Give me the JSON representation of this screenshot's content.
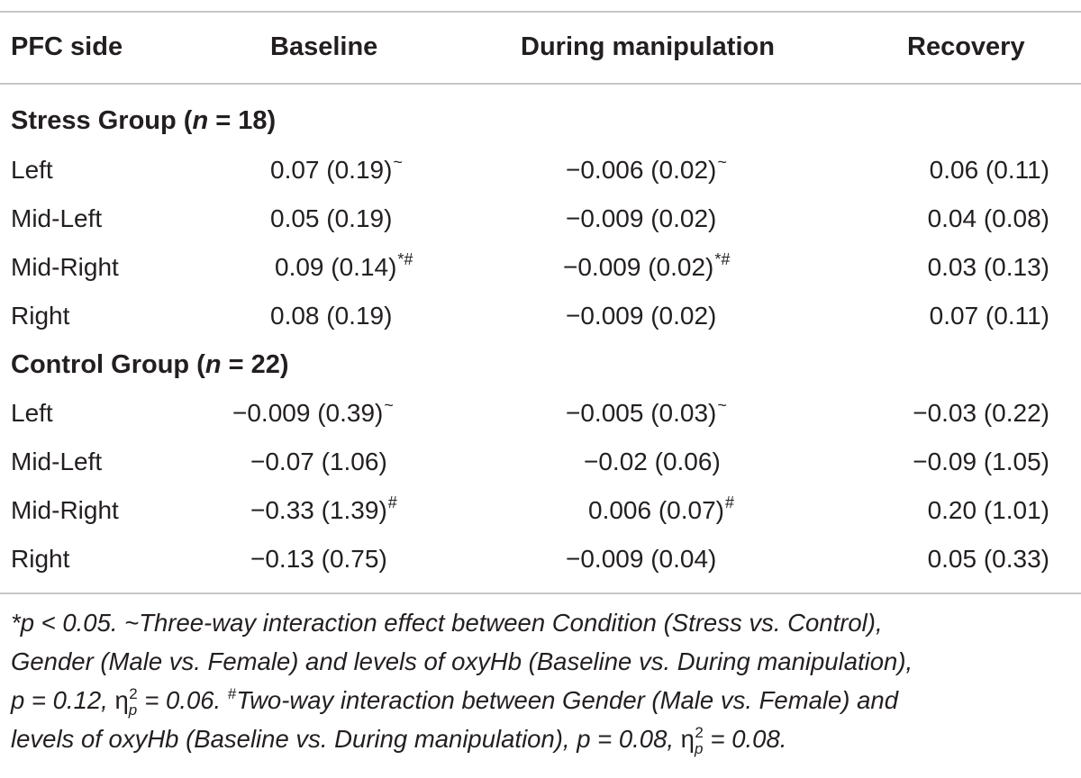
{
  "table": {
    "headers": {
      "col0": "PFC side",
      "col1": "Baseline",
      "col2": "During manipulation",
      "col3": "Recovery"
    },
    "stress_group": {
      "label": "Stress Group (",
      "n_symbol": "n",
      "n_text": " = 18)",
      "rows": [
        {
          "side": "Left",
          "baseline": "0.07 (0.19)",
          "baseline_mark": "~",
          "during": "−0.006 (0.02)",
          "during_mark": "~",
          "recovery": "0.06 (0.11)"
        },
        {
          "side": "Mid-Left",
          "baseline": "0.05 (0.19)",
          "baseline_mark": "",
          "during": "−0.009 (0.02)",
          "during_mark": "",
          "recovery": "0.04 (0.08)"
        },
        {
          "side": "Mid-Right",
          "baseline": "0.09 (0.14)",
          "baseline_mark": "*#",
          "during": "−0.009 (0.02)",
          "during_mark": "*#",
          "recovery": "0.03 (0.13)"
        },
        {
          "side": "Right",
          "baseline": "0.08 (0.19)",
          "baseline_mark": "",
          "during": "−0.009 (0.02)",
          "during_mark": "",
          "recovery": "0.07 (0.11)"
        }
      ]
    },
    "control_group": {
      "label": "Control Group (",
      "n_symbol": "n",
      "n_text": " = 22)",
      "rows": [
        {
          "side": "Left",
          "baseline": "−0.009 (0.39)",
          "baseline_mark": "~",
          "during": "−0.005 (0.03)",
          "during_mark": "~",
          "recovery": "−0.03 (0.22)"
        },
        {
          "side": "Mid-Left",
          "baseline": "−0.07 (1.06)",
          "baseline_mark": "",
          "during": "−0.02 (0.06)",
          "during_mark": "",
          "recovery": "−0.09 (1.05)"
        },
        {
          "side": "Mid-Right",
          "baseline": "−0.33 (1.39)",
          "baseline_mark": "#",
          "during": "0.006 (0.07)",
          "during_mark": "#",
          "recovery": "0.20 (1.01)"
        },
        {
          "side": "Right",
          "baseline": "−0.13 (0.75)",
          "baseline_mark": "",
          "during": "−0.009 (0.04)",
          "during_mark": "",
          "recovery": "0.05 (0.33)"
        }
      ]
    }
  },
  "footnote": {
    "star": "*",
    "p_sig": "p < 0.05. ",
    "tilde": "~",
    "l1_text": "Three-way interaction effect between Condition (Stress vs. Control),",
    "l2_text": "Gender (Male vs. Female) and levels of oxyHb (Baseline vs. During manipulation),",
    "l3_p": "p = 0.12, ",
    "eta": "η",
    "eta_sub": "p",
    "eta_sup": "2",
    "l3_eta_val": " = 0.06. ",
    "hash": "#",
    "l3_text": "Two-way interaction between Gender (Male vs. Female) and",
    "l4_text": "levels of oxyHb (Baseline vs. During manipulation), p = 0.08, ",
    "l4_eta_val": " = 0.08."
  }
}
